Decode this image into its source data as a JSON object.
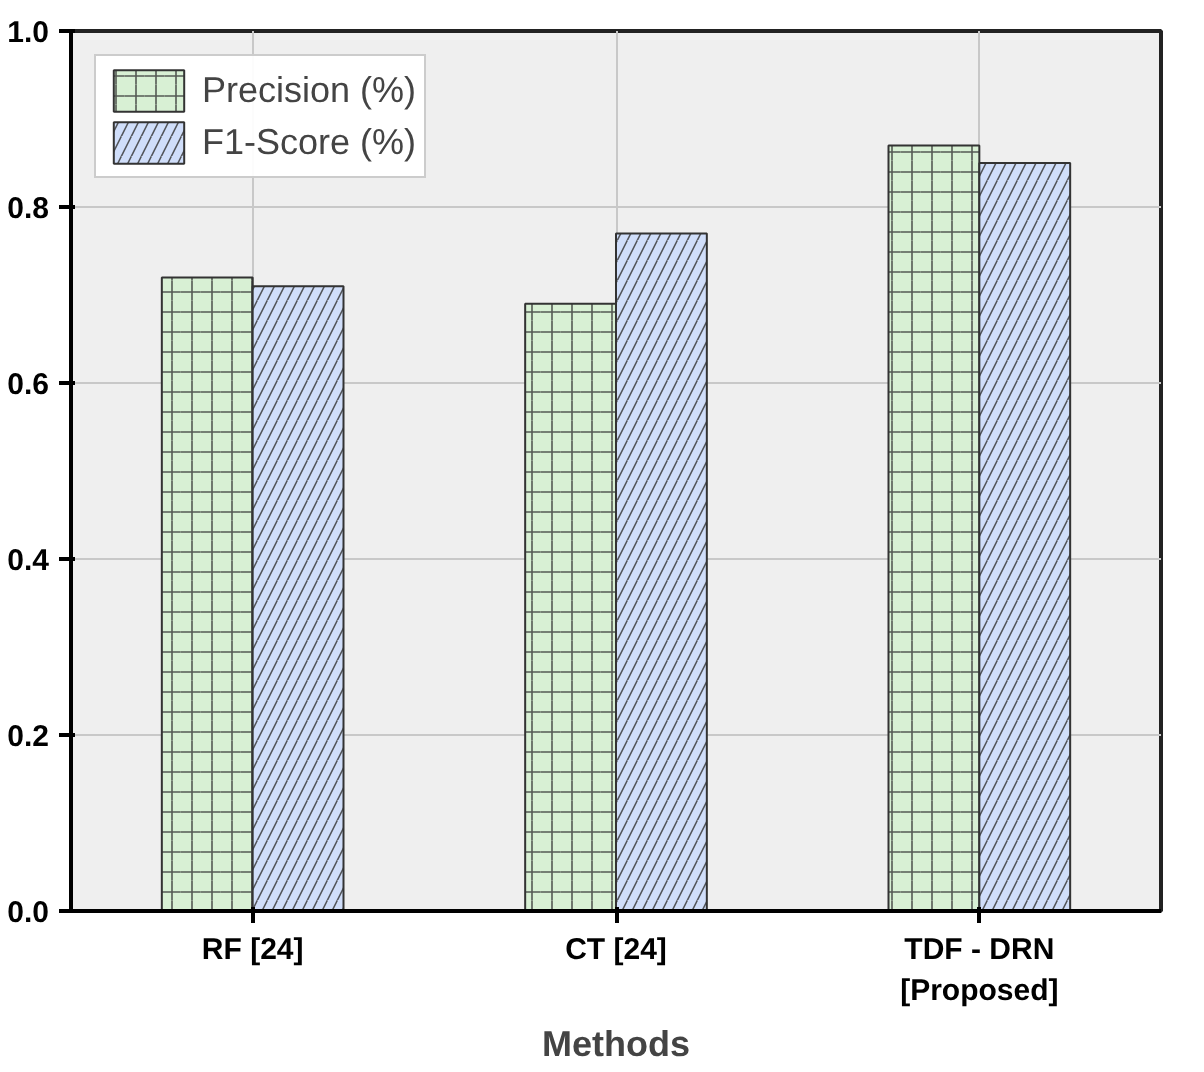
{
  "chart_data": {
    "type": "bar",
    "xlabel": "Methods",
    "categories": [
      "RF [24]",
      "CT [24]",
      "TDF - DRN\n[Proposed]"
    ],
    "series": [
      {
        "name": "Precision (%)",
        "color": "#d8f0d4",
        "values": [
          0.72,
          0.69,
          0.87
        ]
      },
      {
        "name": "F1-Score (%)",
        "color": "#d0defa",
        "values": [
          0.71,
          0.77,
          0.85
        ]
      }
    ],
    "ylim": [
      0,
      1.0
    ],
    "yticks": [
      {
        "value": 0,
        "label": "0.0"
      },
      {
        "value": 0.2,
        "label": "0.2"
      },
      {
        "value": 0.4,
        "label": "0.4"
      },
      {
        "value": 0.6,
        "label": "0.6"
      },
      {
        "value": 0.8,
        "label": "0.8"
      },
      {
        "value": 1.0,
        "label": "1.0"
      }
    ],
    "grid": true,
    "legend": "top left"
  }
}
